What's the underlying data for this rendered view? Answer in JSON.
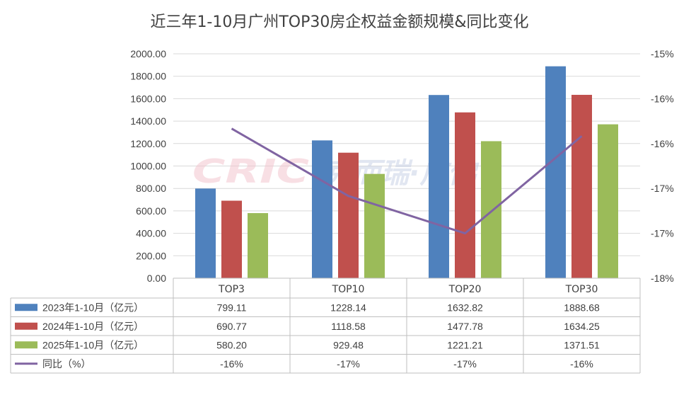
{
  "chart_data": {
    "type": "bar",
    "title": "近三年1-10月广州TOP30房企权益金额规模&同比变化",
    "categories": [
      "TOP3",
      "TOP10",
      "TOP20",
      "TOP30"
    ],
    "series": [
      {
        "name": "2023年1-10月（亿元）",
        "type": "bar",
        "color": "#4f81bd",
        "values": [
          799.11,
          1228.14,
          1632.82,
          1888.68
        ],
        "labels": [
          "799.11",
          "1228.14",
          "1632.82",
          "1888.68"
        ]
      },
      {
        "name": "2024年1-10月（亿元）",
        "type": "bar",
        "color": "#c0504d",
        "values": [
          690.77,
          1118.58,
          1477.78,
          1634.25
        ],
        "labels": [
          "690.77",
          "1118.58",
          "1477.78",
          "1634.25"
        ]
      },
      {
        "name": "2025年1-10月（亿元）",
        "type": "bar",
        "color": "#9bbb59",
        "values": [
          580.2,
          929.48,
          1221.21,
          1371.51
        ],
        "labels": [
          "580.20",
          "929.48",
          "1221.21",
          "1371.51"
        ]
      },
      {
        "name": "同比（%）",
        "type": "line",
        "axis": "right",
        "color": "#8064a2",
        "values": [
          -16.0,
          -16.9,
          -17.4,
          -16.1
        ],
        "labels": [
          "-16%",
          "-17%",
          "-17%",
          "-16%"
        ]
      }
    ],
    "y_left": {
      "min": 0,
      "max": 2000,
      "step": 200,
      "ticks": [
        "0.00",
        "200.00",
        "400.00",
        "600.00",
        "800.00",
        "1000.00",
        "1200.00",
        "1400.00",
        "1600.00",
        "1800.00",
        "2000.00"
      ]
    },
    "y_right": {
      "min": -18,
      "max": -15,
      "ticks": [
        "-18%",
        "-17%",
        "-17%",
        "-16%",
        "-16%",
        "-15%"
      ]
    },
    "grid": true,
    "legend": "data-table"
  },
  "watermark": {
    "logo": "CRIC",
    "text": "克而瑞·广佛"
  }
}
